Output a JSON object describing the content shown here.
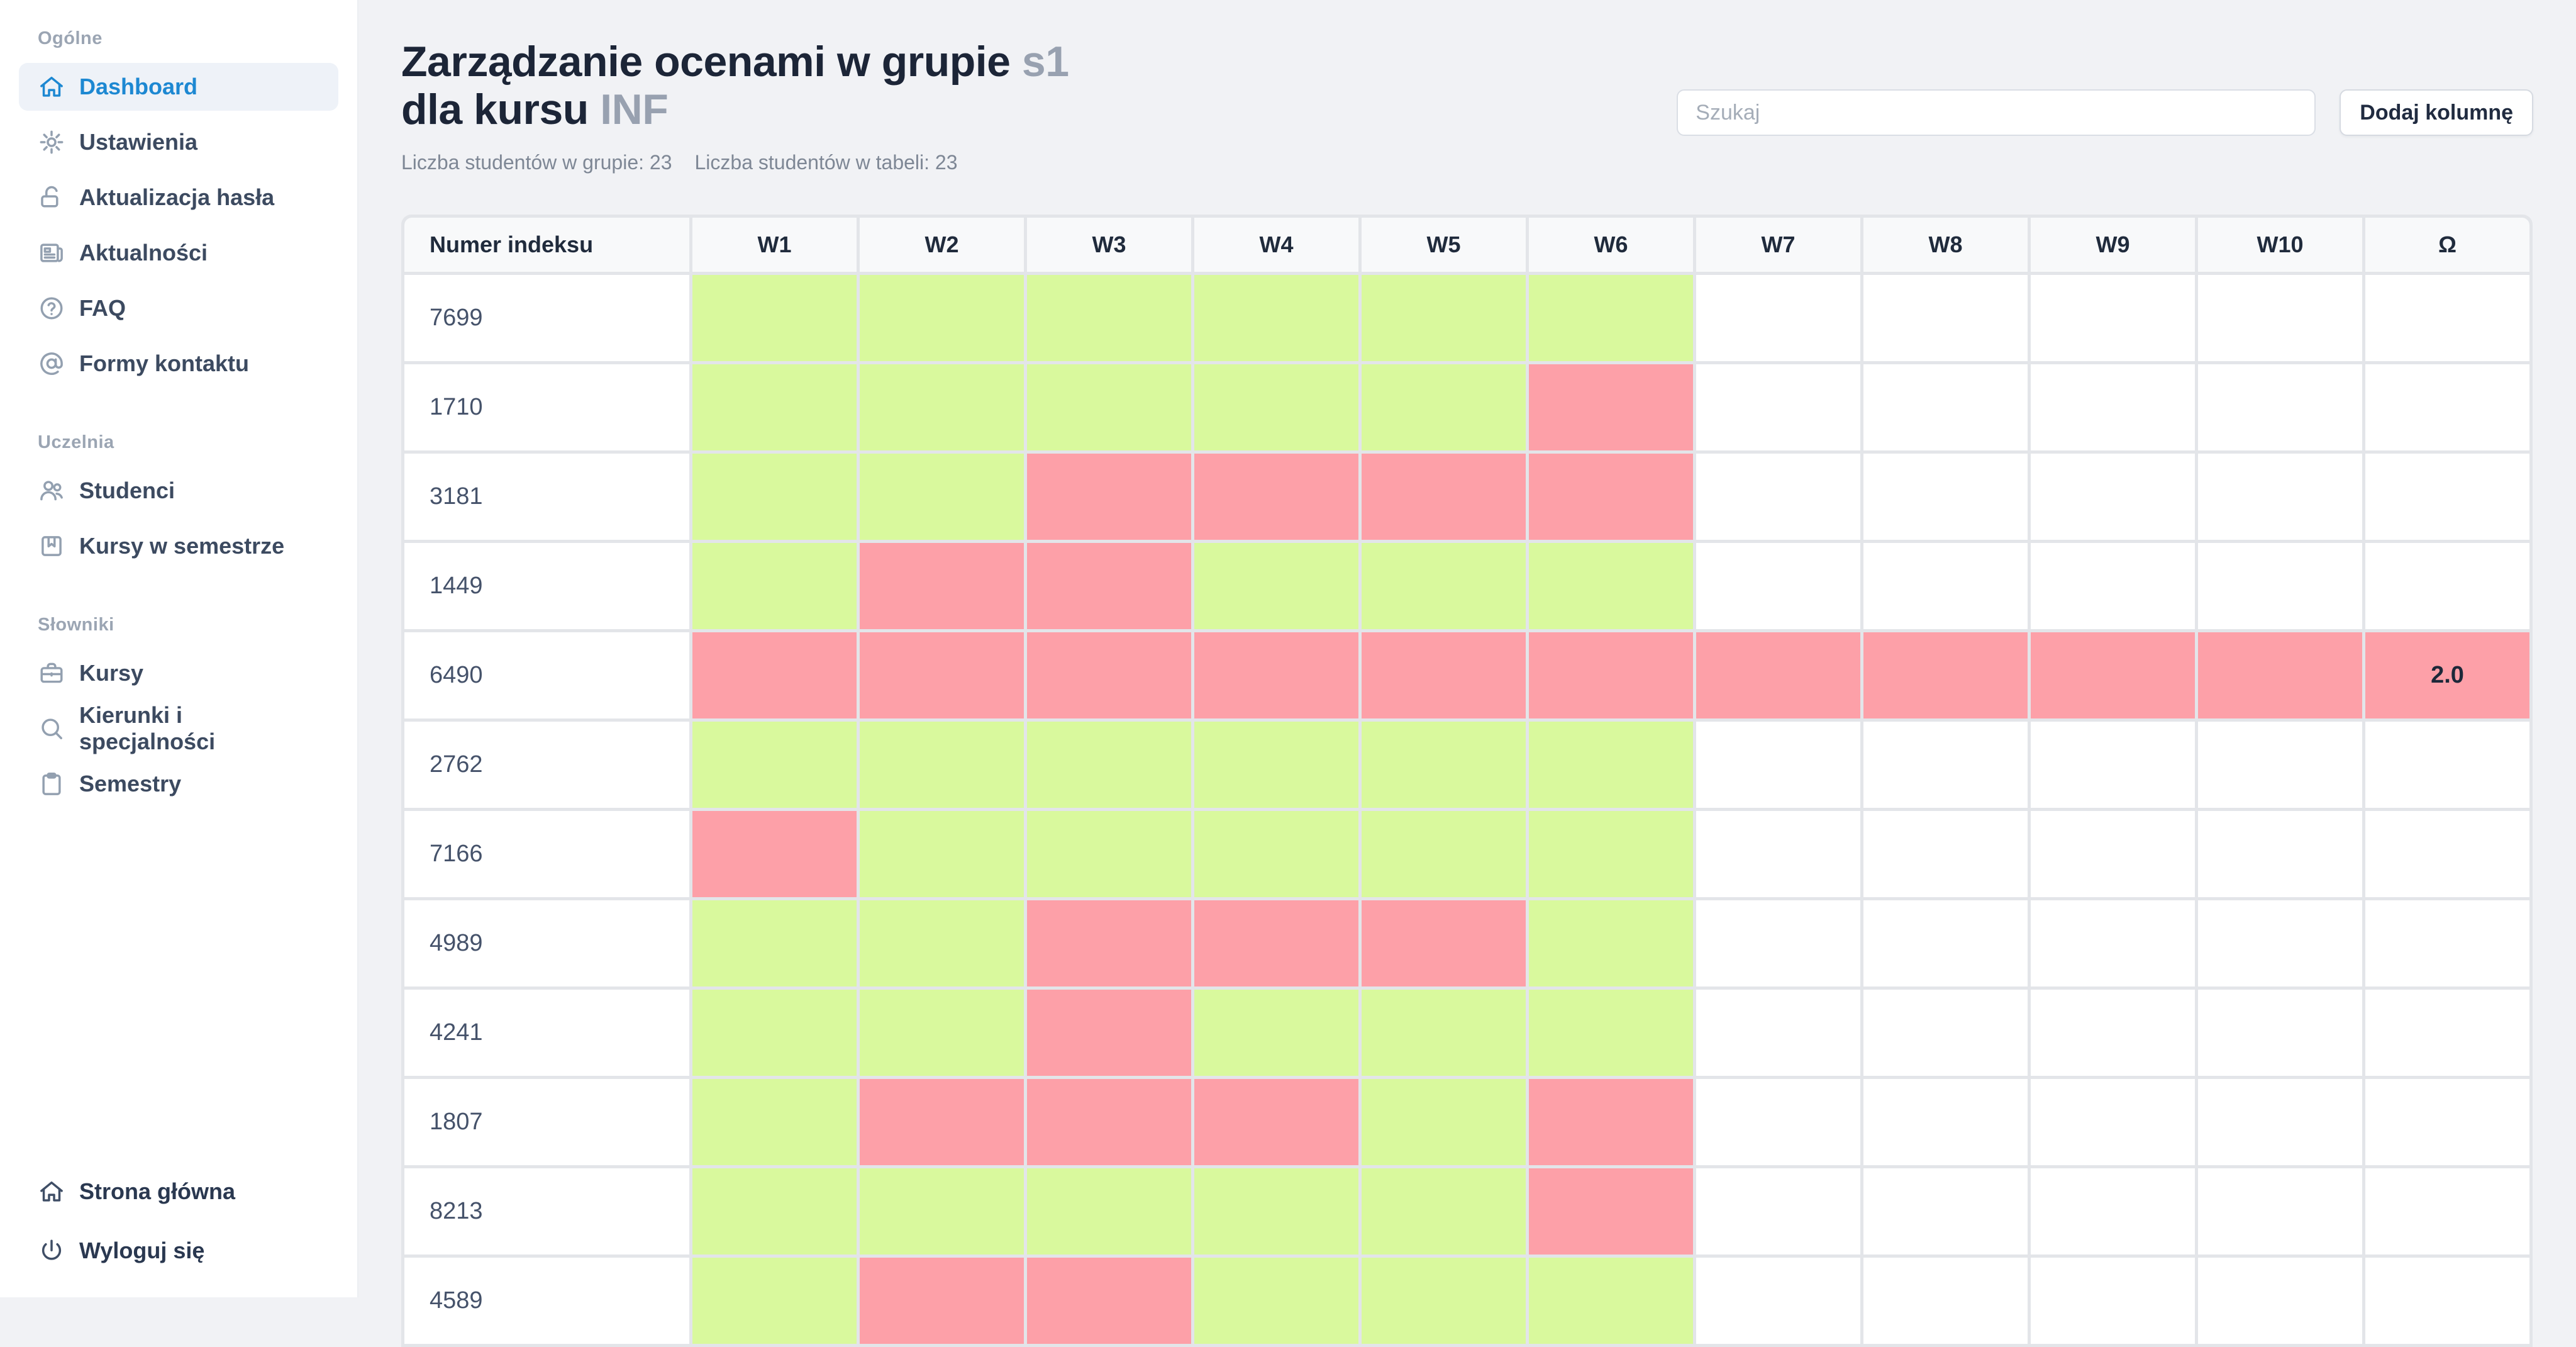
{
  "app": {
    "background": "#f1f2f5",
    "accent": "#1d88d2",
    "pass_color": "#d9f99d",
    "fail_color": "#fda0a8"
  },
  "sidebar": {
    "sections": [
      {
        "label": "Ogólne",
        "items": [
          {
            "label": "Dashboard",
            "icon": "home-icon",
            "active": true
          },
          {
            "label": "Ustawienia",
            "icon": "gear-icon"
          },
          {
            "label": "Aktualizacja hasła",
            "icon": "unlock-icon"
          },
          {
            "label": "Aktualności",
            "icon": "newspaper-icon"
          },
          {
            "label": "FAQ",
            "icon": "question-icon"
          },
          {
            "label": "Formy kontaktu",
            "icon": "at-icon"
          }
        ]
      },
      {
        "label": "Uczelnia",
        "items": [
          {
            "label": "Studenci",
            "icon": "users-icon"
          },
          {
            "label": "Kursy w semestrze",
            "icon": "bookmark-icon"
          }
        ]
      },
      {
        "label": "Słowniki",
        "items": [
          {
            "label": "Kursy",
            "icon": "briefcase-icon"
          },
          {
            "label": "Kierunki i specjalności",
            "icon": "search-icon"
          },
          {
            "label": "Semestry",
            "icon": "clipboard-icon"
          }
        ]
      }
    ],
    "footer_items": [
      {
        "label": "Strona główna",
        "icon": "home-icon"
      },
      {
        "label": "Wyloguj się",
        "icon": "power-icon"
      }
    ]
  },
  "header": {
    "title_line1": "Zarządzanie ocenami w grupie",
    "title_group": "s1",
    "title_line2": "dla kursu",
    "title_course": "INF",
    "stat_group": "Liczba studentów w grupie: 23",
    "stat_table": "Liczba studentów w tabeli: 23",
    "search_placeholder": "Szukaj",
    "add_column_label": "Dodaj kolumnę"
  },
  "table": {
    "index_header": "Numer indeksu",
    "columns": [
      "W1",
      "W2",
      "W3",
      "W4",
      "W5",
      "W6",
      "W7",
      "W8",
      "W9",
      "W10",
      "Ω"
    ],
    "rows": [
      {
        "index": "7699",
        "grades": [
          "pass",
          "pass",
          "pass",
          "pass",
          "pass",
          "pass",
          "",
          "",
          "",
          "",
          ""
        ]
      },
      {
        "index": "1710",
        "grades": [
          "pass",
          "pass",
          "pass",
          "pass",
          "pass",
          "fail",
          "",
          "",
          "",
          "",
          ""
        ]
      },
      {
        "index": "3181",
        "grades": [
          "pass",
          "pass",
          "fail",
          "fail",
          "fail",
          "fail",
          "",
          "",
          "",
          "",
          ""
        ]
      },
      {
        "index": "1449",
        "grades": [
          "pass",
          "fail",
          "fail",
          "pass",
          "pass",
          "pass",
          "",
          "",
          "",
          "",
          ""
        ]
      },
      {
        "index": "6490",
        "grades": [
          "fail",
          "fail",
          "fail",
          "fail",
          "fail",
          "fail",
          "fail",
          "fail",
          "fail",
          "fail",
          "fail"
        ],
        "omega": "2.0"
      },
      {
        "index": "2762",
        "grades": [
          "pass",
          "pass",
          "pass",
          "pass",
          "pass",
          "pass",
          "",
          "",
          "",
          "",
          ""
        ]
      },
      {
        "index": "7166",
        "grades": [
          "fail",
          "pass",
          "pass",
          "pass",
          "pass",
          "pass",
          "",
          "",
          "",
          "",
          ""
        ]
      },
      {
        "index": "4989",
        "grades": [
          "pass",
          "pass",
          "fail",
          "fail",
          "fail",
          "pass",
          "",
          "",
          "",
          "",
          ""
        ]
      },
      {
        "index": "4241",
        "grades": [
          "pass",
          "pass",
          "fail",
          "pass",
          "pass",
          "pass",
          "",
          "",
          "",
          "",
          ""
        ]
      },
      {
        "index": "1807",
        "grades": [
          "pass",
          "fail",
          "fail",
          "fail",
          "pass",
          "fail",
          "",
          "",
          "",
          "",
          ""
        ]
      },
      {
        "index": "8213",
        "grades": [
          "pass",
          "pass",
          "pass",
          "pass",
          "pass",
          "fail",
          "",
          "",
          "",
          "",
          ""
        ]
      },
      {
        "index": "4589",
        "grades": [
          "pass",
          "fail",
          "fail",
          "pass",
          "pass",
          "pass",
          "",
          "",
          "",
          "",
          ""
        ]
      }
    ]
  }
}
